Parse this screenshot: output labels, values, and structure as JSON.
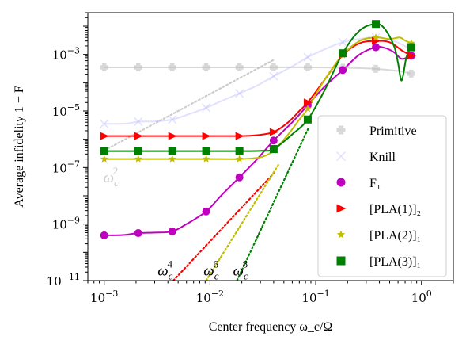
{
  "chart_data": {
    "type": "line",
    "title": "",
    "xlabel": "Center frequency ω_c/Ω",
    "ylabel": "Average infidelity 1 − F",
    "xscale": "log",
    "yscale": "log",
    "xlim": [
      0.0007,
      2.0
    ],
    "ylim": [
      1e-11,
      0.03
    ],
    "x_ticks": [
      {
        "value": 0.001,
        "base": "10",
        "exp": "−3"
      },
      {
        "value": 0.01,
        "base": "10",
        "exp": "−2"
      },
      {
        "value": 0.1,
        "base": "10",
        "exp": "−1"
      },
      {
        "value": 1,
        "base": "10",
        "exp": "0"
      }
    ],
    "y_ticks": [
      {
        "value": 1e-11,
        "base": "10",
        "exp": "−11"
      },
      {
        "value": 1e-09,
        "base": "10",
        "exp": "−9"
      },
      {
        "value": 1e-07,
        "base": "10",
        "exp": "−7"
      },
      {
        "value": 1e-05,
        "base": "10",
        "exp": "−5"
      },
      {
        "value": 0.001,
        "base": "10",
        "exp": "−3"
      }
    ],
    "grid": false,
    "legend_position": "lower-right",
    "series": [
      {
        "name": "Primitive",
        "color": "#bfbfbf",
        "opacity": 0.6,
        "marker": "plus",
        "x": [
          0.001,
          0.0021,
          0.0044,
          0.0092,
          0.019,
          0.04,
          0.084,
          0.18,
          0.37,
          0.8
        ],
        "y": [
          0.00035,
          0.00035,
          0.00035,
          0.00035,
          0.00035,
          0.00035,
          0.00035,
          0.00034,
          0.00031,
          0.00021
        ],
        "curve_x": [
          0.001,
          0.0021,
          0.0044,
          0.0092,
          0.019,
          0.04,
          0.084,
          0.18,
          0.37,
          0.6,
          0.8
        ],
        "curve_y": [
          0.00035,
          0.00035,
          0.00035,
          0.00035,
          0.00035,
          0.00035,
          0.00035,
          0.00034,
          0.00031,
          0.00026,
          0.00021
        ]
      },
      {
        "name": "Knill",
        "color": "#aaaaff",
        "opacity": 0.35,
        "marker": "x",
        "x": [
          0.001,
          0.0021,
          0.0044,
          0.0092,
          0.019,
          0.04,
          0.084,
          0.18,
          0.37,
          0.8
        ],
        "y": [
          3.5e-06,
          4.2e-06,
          5e-06,
          1.3e-05,
          4.2e-05,
          0.00017,
          0.0008,
          0.0027,
          0.004,
          0.0015
        ],
        "curve_x": [
          0.001,
          0.0016,
          0.0021,
          0.003,
          0.0044,
          0.0065,
          0.0092,
          0.013,
          0.019,
          0.028,
          0.04,
          0.06,
          0.084,
          0.12,
          0.18,
          0.26,
          0.37,
          0.55,
          0.8
        ],
        "curve_y": [
          3.5e-06,
          3.6e-06,
          4.2e-06,
          4.3e-06,
          5e-06,
          8e-06,
          1.3e-05,
          2.3e-05,
          4.2e-05,
          8e-05,
          0.00017,
          0.00038,
          0.0008,
          0.0015,
          0.0027,
          0.0035,
          0.004,
          0.003,
          0.0015
        ]
      },
      {
        "name": "F₁",
        "color": "#bf00bf",
        "marker": "circle",
        "x": [
          0.001,
          0.0021,
          0.0044,
          0.0092,
          0.019,
          0.04,
          0.084,
          0.18,
          0.37,
          0.8
        ],
        "y": [
          4e-10,
          4.8e-10,
          5.5e-10,
          2.8e-09,
          4.5e-08,
          9e-07,
          1.6e-05,
          0.00028,
          0.0018,
          0.0009
        ],
        "curve_x": [
          0.001,
          0.0015,
          0.0021,
          0.003,
          0.0044,
          0.006,
          0.0092,
          0.013,
          0.019,
          0.028,
          0.04,
          0.06,
          0.084,
          0.12,
          0.18,
          0.26,
          0.37,
          0.45,
          0.55,
          0.65,
          0.8
        ],
        "curve_y": [
          4e-10,
          4.1e-10,
          4.8e-10,
          5e-10,
          5.5e-10,
          1e-09,
          2.8e-09,
          1.1e-08,
          4.5e-08,
          2e-07,
          9e-07,
          4e-06,
          1.6e-05,
          7e-05,
          0.00028,
          0.001,
          0.0018,
          0.0017,
          0.0012,
          0.0007,
          0.0009
        ]
      },
      {
        "name": "[PLA(1)]₂",
        "color": "#ff0000",
        "marker": "triangle-right",
        "x": [
          0.001,
          0.0021,
          0.0044,
          0.0092,
          0.019,
          0.04,
          0.084,
          0.18,
          0.37,
          0.8
        ],
        "y": [
          1.3e-06,
          1.3e-06,
          1.3e-06,
          1.3e-06,
          1.3e-06,
          1.8e-06,
          2e-05,
          0.00095,
          0.003,
          0.0009
        ],
        "curve_x": [
          0.001,
          0.0021,
          0.0044,
          0.0092,
          0.019,
          0.028,
          0.04,
          0.055,
          0.07,
          0.084,
          0.12,
          0.18,
          0.26,
          0.37,
          0.5,
          0.65,
          0.8
        ],
        "curve_y": [
          1.3e-06,
          1.3e-06,
          1.3e-06,
          1.3e-06,
          1.3e-06,
          1.4e-06,
          1.8e-06,
          4e-06,
          1e-05,
          2e-05,
          0.00012,
          0.00095,
          0.0025,
          0.003,
          0.0027,
          0.0014,
          0.0009
        ]
      },
      {
        "name": "[PLA(2)]₁",
        "color": "#bfbf00",
        "marker": "star",
        "x": [
          0.001,
          0.0021,
          0.0044,
          0.0092,
          0.019,
          0.04,
          0.084,
          0.18,
          0.37,
          0.8
        ],
        "y": [
          2e-07,
          2e-07,
          2e-07,
          2e-07,
          2e-07,
          4e-07,
          1.2e-05,
          0.00095,
          0.004,
          0.0025
        ],
        "curve_x": [
          0.001,
          0.0021,
          0.0044,
          0.0092,
          0.019,
          0.03,
          0.04,
          0.055,
          0.07,
          0.084,
          0.12,
          0.18,
          0.26,
          0.37,
          0.5,
          0.62,
          0.7,
          0.8
        ],
        "curve_y": [
          2e-07,
          2e-07,
          2e-07,
          2e-07,
          2e-07,
          2.3e-07,
          4e-07,
          1.5e-06,
          5e-06,
          1.2e-05,
          0.00012,
          0.00095,
          0.003,
          0.004,
          0.0035,
          0.004,
          0.0031,
          0.0025
        ]
      },
      {
        "name": "[PLA(3)]₁",
        "color": "#008000",
        "marker": "square",
        "x": [
          0.001,
          0.0021,
          0.0044,
          0.0092,
          0.019,
          0.04,
          0.084,
          0.18,
          0.37,
          0.8
        ],
        "y": [
          3.8e-07,
          3.8e-07,
          3.8e-07,
          3.8e-07,
          3.8e-07,
          4.5e-07,
          5e-06,
          0.0011,
          0.012,
          0.0018
        ],
        "curve_x": [
          0.001,
          0.0021,
          0.0044,
          0.0092,
          0.019,
          0.03,
          0.04,
          0.06,
          0.084,
          0.12,
          0.18,
          0.26,
          0.37,
          0.45,
          0.55,
          0.6,
          0.65,
          0.72,
          0.8
        ],
        "curve_y": [
          3.8e-07,
          3.8e-07,
          3.8e-07,
          3.8e-07,
          3.8e-07,
          3.9e-07,
          4.5e-07,
          1.5e-06,
          5e-06,
          5e-05,
          0.0011,
          0.007,
          0.012,
          0.008,
          0.002,
          0.0005,
          0.00012,
          0.0008,
          0.0018
        ]
      }
    ],
    "reference_lines": [
      {
        "label": "ω",
        "sub": "c",
        "sup": "2",
        "color": "#cccccc",
        "x": [
          0.001,
          0.04
        ],
        "y": [
          4e-07,
          0.00064
        ],
        "label_at": {
          "x": 0.00098,
          "y": 3e-08
        }
      },
      {
        "label": "ω",
        "sub": "c",
        "sup": "4",
        "color": "#ff0000",
        "x": [
          0.0045,
          0.04
        ],
        "y": [
          1e-11,
          6.2e-08
        ],
        "label_at": {
          "x": 0.0032,
          "y": 1.5e-11
        }
      },
      {
        "label": "ω",
        "sub": "c",
        "sup": "6",
        "color": "#bfbf00",
        "x": [
          0.0092,
          0.045
        ],
        "y": [
          1e-11,
          1.36e-07
        ],
        "label_at": {
          "x": 0.0087,
          "y": 1.5e-11
        }
      },
      {
        "label": "ω",
        "sub": "c",
        "sup": "8",
        "color": "#008000",
        "x": [
          0.018,
          0.085
        ],
        "y": [
          1e-11,
          2.4e-06
        ],
        "label_at": {
          "x": 0.0165,
          "y": 1.5e-11
        }
      }
    ]
  }
}
